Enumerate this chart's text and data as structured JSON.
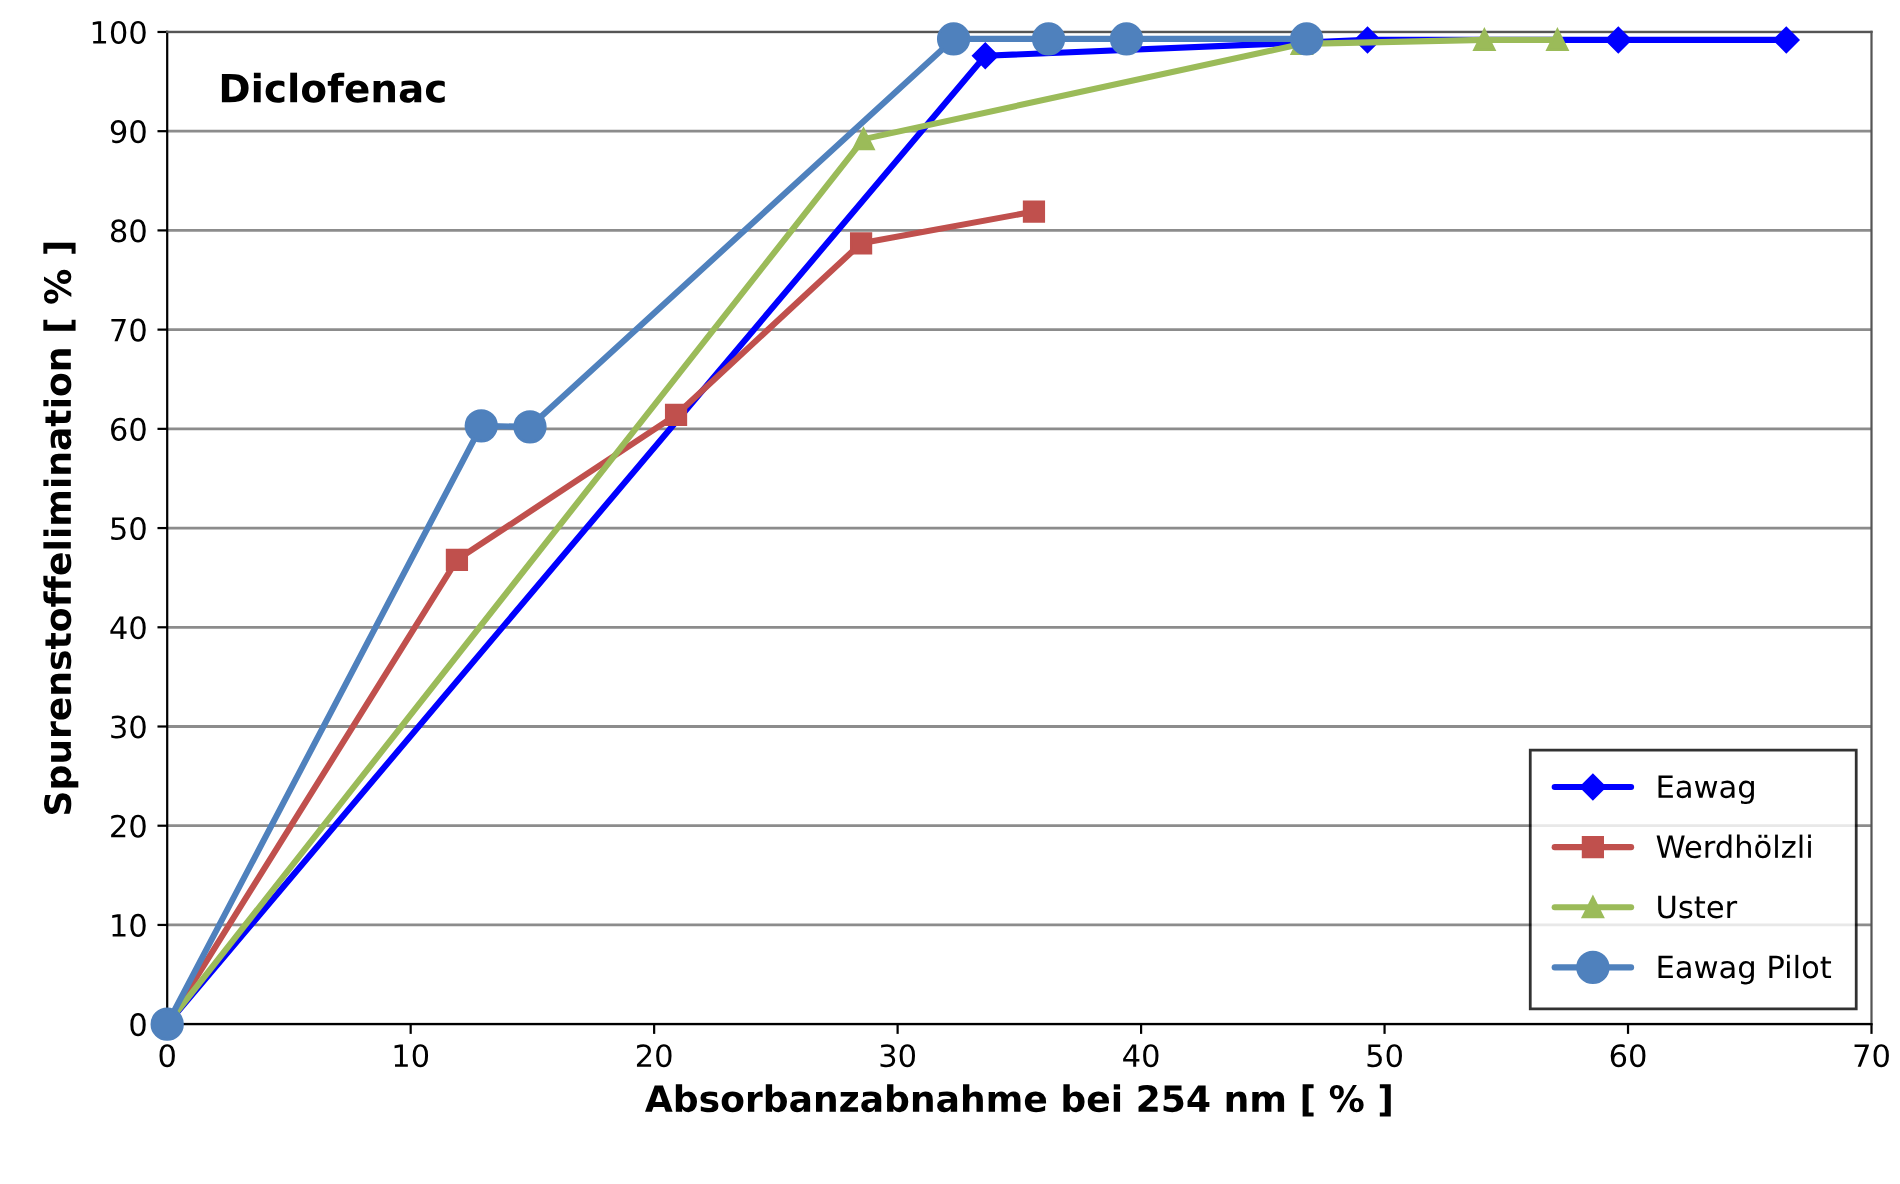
{
  "chart_data": {
    "type": "line",
    "title": "Diclofenac",
    "xlabel": "Absorbanzabnahme bei 254 nm [ % ]",
    "ylabel": "Spurenstoffelimination [ % ]",
    "xlim": [
      0,
      70
    ],
    "xticks": [
      0,
      10,
      20,
      30,
      40,
      50,
      60,
      70
    ],
    "ylim": [
      0,
      100
    ],
    "yticks": [
      0,
      10,
      20,
      30,
      40,
      50,
      60,
      70,
      80,
      90,
      100
    ],
    "grid": "y",
    "legend": "bottom right",
    "series": [
      {
        "name": "Eawag",
        "color": "#0000ff",
        "marker": "diamond",
        "x": [
          0,
          33.6,
          49.3,
          59.6,
          66.5
        ],
        "values": [
          0,
          97.6,
          99.2,
          99.2,
          99.2
        ]
      },
      {
        "name": "Werdhölzli",
        "color": "#c0504d",
        "marker": "square",
        "x": [
          0,
          11.9,
          20.9,
          28.5,
          35.6
        ],
        "values": [
          0,
          46.8,
          61.4,
          78.7,
          81.9
        ]
      },
      {
        "name": "Uster",
        "color": "#9bbb59",
        "marker": "triangle",
        "x": [
          0,
          28.6,
          46.6,
          54.1,
          57.1
        ],
        "values": [
          0,
          89.2,
          98.8,
          99.2,
          99.2
        ]
      },
      {
        "name": "Eawag Pilot",
        "color": "#4f81bd",
        "marker": "circle",
        "x": [
          0,
          12.9,
          14.9,
          32.3,
          36.2,
          39.4,
          46.8
        ],
        "values": [
          0,
          60.3,
          60.2,
          99.3,
          99.3,
          99.3,
          99.3
        ]
      }
    ]
  }
}
